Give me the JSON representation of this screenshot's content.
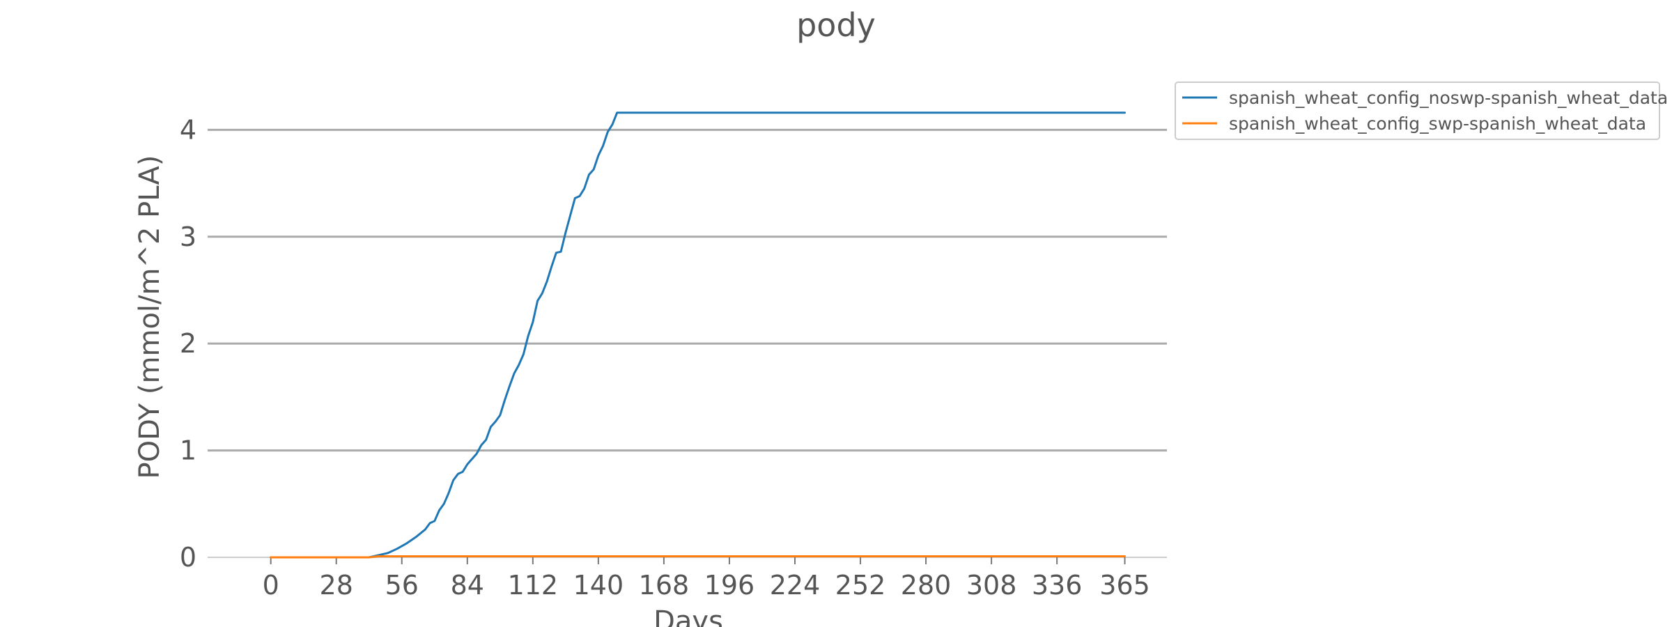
{
  "chart_data": {
    "type": "line",
    "title": "pody",
    "xlabel": "Days",
    "ylabel": "PODY (mmol/m^2 PLA)",
    "xlim": [
      -27,
      383
    ],
    "ylim": [
      0,
      4.4
    ],
    "xticks": [
      0,
      28,
      56,
      84,
      112,
      140,
      168,
      196,
      224,
      252,
      280,
      308,
      336,
      365
    ],
    "yticks": [
      0,
      1,
      2,
      3,
      4
    ],
    "grid": "horizontal",
    "legend_position": "outside-top-right",
    "series": [
      {
        "name": "spanish_wheat_config_noswp-spanish_wheat_data",
        "color": "#1f77b4",
        "points": [
          [
            0,
            0
          ],
          [
            42,
            0
          ],
          [
            46,
            0.02
          ],
          [
            50,
            0.04
          ],
          [
            54,
            0.08
          ],
          [
            58,
            0.13
          ],
          [
            62,
            0.19
          ],
          [
            66,
            0.26
          ],
          [
            68,
            0.32
          ],
          [
            70,
            0.34
          ],
          [
            72,
            0.44
          ],
          [
            74,
            0.5
          ],
          [
            76,
            0.6
          ],
          [
            78,
            0.72
          ],
          [
            80,
            0.78
          ],
          [
            82,
            0.8
          ],
          [
            84,
            0.87
          ],
          [
            88,
            0.97
          ],
          [
            90,
            1.05
          ],
          [
            92,
            1.1
          ],
          [
            94,
            1.22
          ],
          [
            96,
            1.27
          ],
          [
            98,
            1.33
          ],
          [
            100,
            1.47
          ],
          [
            102,
            1.6
          ],
          [
            104,
            1.72
          ],
          [
            106,
            1.8
          ],
          [
            108,
            1.9
          ],
          [
            110,
            2.07
          ],
          [
            112,
            2.2
          ],
          [
            114,
            2.4
          ],
          [
            116,
            2.47
          ],
          [
            118,
            2.58
          ],
          [
            120,
            2.72
          ],
          [
            122,
            2.85
          ],
          [
            124,
            2.86
          ],
          [
            126,
            3.04
          ],
          [
            128,
            3.2
          ],
          [
            130,
            3.36
          ],
          [
            132,
            3.38
          ],
          [
            134,
            3.45
          ],
          [
            136,
            3.58
          ],
          [
            138,
            3.63
          ],
          [
            140,
            3.76
          ],
          [
            142,
            3.85
          ],
          [
            144,
            3.98
          ],
          [
            146,
            4.05
          ],
          [
            148,
            4.16
          ],
          [
            200,
            4.16
          ],
          [
            300,
            4.16
          ],
          [
            365,
            4.16
          ]
        ]
      },
      {
        "name": "spanish_wheat_config_swp-spanish_wheat_data",
        "color": "#ff7f0e",
        "points": [
          [
            0,
            0
          ],
          [
            42,
            0
          ],
          [
            46,
            0.01
          ],
          [
            60,
            0.01
          ],
          [
            100,
            0.01
          ],
          [
            200,
            0.01
          ],
          [
            300,
            0.01
          ],
          [
            365,
            0.01
          ]
        ]
      }
    ]
  }
}
